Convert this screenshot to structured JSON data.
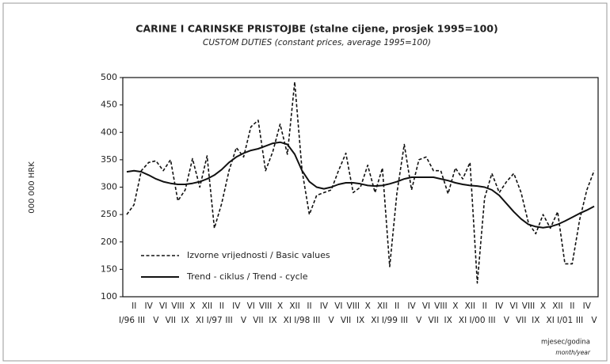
{
  "chart_data": {
    "type": "line",
    "title": "CARINE I CARINSKE PRISTOJBE (stalne cijene, prosjek 1995=100)",
    "subtitle": "CUSTOM DUTIES (constant prices, average 1995=100)",
    "y_label": "000 000 HRK",
    "x_label": "mjesec/godina",
    "x_label_en": "month/year",
    "categories": [
      "I/96",
      "II",
      "III",
      "IV",
      "V",
      "VI",
      "VII",
      "VIII",
      "IX",
      "X",
      "XI",
      "XII",
      "I/97",
      "II",
      "III",
      "IV",
      "V",
      "VI",
      "VII",
      "VIII",
      "IX",
      "X",
      "XI",
      "XII",
      "I/98",
      "II",
      "III",
      "IV",
      "V",
      "VI",
      "VII",
      "VIII",
      "IX",
      "X",
      "XI",
      "XII",
      "I/99",
      "II",
      "III",
      "IV",
      "V",
      "VI",
      "VII",
      "VIII",
      "IX",
      "X",
      "XI",
      "XII",
      "I/00",
      "II",
      "III",
      "IV",
      "V",
      "VI",
      "VII",
      "VIII",
      "IX",
      "X",
      "XI",
      "XII",
      "I/01",
      "II",
      "III",
      "IV",
      "V"
    ],
    "series": [
      {
        "name": "Izvorne vrijednosti / Basic values",
        "color": "#111111",
        "dash": true,
        "values": [
          250,
          268,
          330,
          345,
          348,
          330,
          350,
          275,
          295,
          352,
          300,
          357,
          225,
          270,
          330,
          372,
          355,
          410,
          422,
          330,
          365,
          415,
          360,
          492,
          330,
          250,
          285,
          290,
          295,
          330,
          362,
          290,
          300,
          340,
          290,
          335,
          155,
          290,
          378,
          295,
          350,
          355,
          330,
          330,
          288,
          335,
          315,
          345,
          125,
          280,
          325,
          290,
          310,
          325,
          290,
          235,
          215,
          250,
          225,
          255,
          160,
          160,
          240,
          295,
          330
        ]
      },
      {
        "name": "Trend - ciklus / Trend - cycle",
        "color": "#111111",
        "dash": false,
        "values": [
          328,
          330,
          328,
          322,
          315,
          310,
          307,
          305,
          305,
          307,
          310,
          315,
          322,
          332,
          345,
          355,
          362,
          367,
          370,
          375,
          380,
          382,
          378,
          360,
          330,
          310,
          300,
          297,
          300,
          305,
          308,
          308,
          306,
          303,
          302,
          303,
          306,
          310,
          315,
          318,
          318,
          318,
          318,
          315,
          312,
          308,
          305,
          303,
          302,
          300,
          295,
          285,
          270,
          255,
          242,
          232,
          228,
          226,
          228,
          232,
          238,
          245,
          252,
          258,
          265
        ]
      }
    ],
    "ylim": [
      100,
      500
    ],
    "yticks": [
      100,
      150,
      200,
      250,
      300,
      350,
      400,
      450,
      500
    ],
    "grid": false
  }
}
